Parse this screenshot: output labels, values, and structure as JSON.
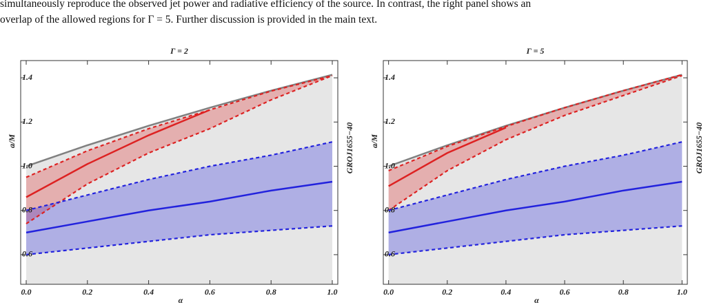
{
  "caption": [
    "simultaneously reproduce the observed jet power and radiative efficiency of the source. In contrast, the right panel shows an",
    "overlap of the allowed regions for Γ = 5. Further discussion is provided in the main text."
  ],
  "chart_data": [
    {
      "type": "line",
      "title": "Γ = 2",
      "x_label": "α",
      "y_label": "a/M",
      "side_label": "GROJ1655−40",
      "x": [
        0,
        0.2,
        0.4,
        0.6,
        0.8,
        1.0
      ],
      "xlim": [
        -0.018,
        1.018
      ],
      "ylim": [
        0.466,
        1.478
      ],
      "xticks": [
        {
          "value": 0,
          "label": "0.0"
        },
        0.2,
        0.4,
        0.6,
        0.8,
        {
          "value": 1.0,
          "label": "1.0"
        }
      ],
      "yticks": [
        0.6,
        0.8,
        {
          "value": 1.0,
          "label": "1.0"
        },
        1.2,
        1.4
      ],
      "series": [
        {
          "color": "#808080",
          "dashed": false,
          "values": [
            1.0,
            1.095,
            1.183,
            1.265,
            1.342,
            1.414
          ]
        },
        {
          "color": "#dd2222",
          "dashed": false,
          "values": [
            0.86,
            1.01,
            1.14,
            1.255,
            null,
            null
          ]
        },
        {
          "color": "#dd2222",
          "dashed": true,
          "values": [
            0.95,
            1.07,
            1.17,
            1.255,
            1.34,
            1.41
          ]
        },
        {
          "color": "#dd2222",
          "dashed": true,
          "values": [
            0.74,
            0.92,
            1.06,
            1.17,
            1.3,
            1.41
          ]
        },
        {
          "color": "#2222dd",
          "dashed": false,
          "values": [
            0.7,
            0.75,
            0.8,
            0.84,
            0.89,
            0.93
          ]
        },
        {
          "color": "#2222dd",
          "dashed": true,
          "values": [
            0.8,
            0.87,
            0.94,
            1.0,
            1.05,
            1.11
          ]
        },
        {
          "color": "#2222dd",
          "dashed": true,
          "values": [
            0.6,
            0.63,
            0.66,
            0.69,
            0.71,
            0.73
          ]
        }
      ]
    },
    {
      "type": "line",
      "title": "Γ = 5",
      "x_label": "α",
      "y_label": "a/M",
      "side_label": "GROJ1655−40",
      "x": [
        0,
        0.2,
        0.4,
        0.6,
        0.8,
        1.0
      ],
      "xlim": [
        -0.018,
        1.018
      ],
      "ylim": [
        0.466,
        1.478
      ],
      "xticks": [
        {
          "value": 0,
          "label": "0.0"
        },
        0.2,
        0.4,
        0.6,
        0.8,
        {
          "value": 1.0,
          "label": "1.0"
        }
      ],
      "yticks": [
        0.6,
        0.8,
        {
          "value": 1.0,
          "label": "1.0"
        },
        1.2,
        1.4
      ],
      "series": [
        {
          "color": "#808080",
          "dashed": false,
          "values": [
            1.0,
            1.095,
            1.183,
            1.265,
            1.342,
            1.414
          ]
        },
        {
          "color": "#dd2222",
          "dashed": false,
          "values": [
            0.91,
            1.06,
            1.175,
            null,
            null,
            null
          ]
        },
        {
          "color": "#dd2222",
          "dashed": true,
          "values": [
            0.98,
            1.09,
            1.18,
            1.265,
            1.342,
            1.414
          ]
        },
        {
          "color": "#dd2222",
          "dashed": true,
          "values": [
            0.8,
            0.98,
            1.12,
            1.23,
            1.32,
            1.41
          ]
        },
        {
          "color": "#2222dd",
          "dashed": false,
          "values": [
            0.7,
            0.75,
            0.8,
            0.84,
            0.89,
            0.93
          ]
        },
        {
          "color": "#2222dd",
          "dashed": true,
          "values": [
            0.8,
            0.87,
            0.94,
            1.0,
            1.05,
            1.11
          ]
        },
        {
          "color": "#2222dd",
          "dashed": true,
          "values": [
            0.6,
            0.63,
            0.66,
            0.69,
            0.71,
            0.73
          ]
        }
      ]
    }
  ]
}
